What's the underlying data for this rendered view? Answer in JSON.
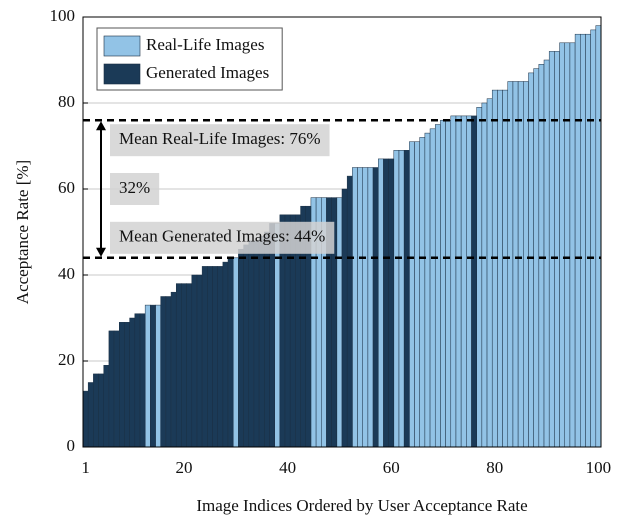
{
  "chart_data": {
    "type": "bar",
    "xlabel": "Image Indices Ordered by User Acceptance Rate",
    "ylabel": "Acceptance Rate [%]",
    "x": [
      1,
      2,
      3,
      4,
      5,
      6,
      7,
      8,
      9,
      10,
      11,
      12,
      13,
      14,
      15,
      16,
      17,
      18,
      19,
      20,
      21,
      22,
      23,
      24,
      25,
      26,
      27,
      28,
      29,
      30,
      31,
      32,
      33,
      34,
      35,
      36,
      37,
      38,
      39,
      40,
      41,
      42,
      43,
      44,
      45,
      46,
      47,
      48,
      49,
      50,
      51,
      52,
      53,
      54,
      55,
      56,
      57,
      58,
      59,
      60,
      61,
      62,
      63,
      64,
      65,
      66,
      67,
      68,
      69,
      70,
      71,
      72,
      73,
      74,
      75,
      76,
      77,
      78,
      79,
      80,
      81,
      82,
      83,
      84,
      85,
      86,
      87,
      88,
      89,
      90,
      91,
      92,
      93,
      94,
      95,
      96,
      97,
      98,
      99,
      100
    ],
    "series": [
      {
        "name": "Real-Life Images",
        "color": "#92c3e6",
        "values": [
          null,
          null,
          null,
          null,
          null,
          null,
          null,
          null,
          null,
          null,
          null,
          null,
          33,
          null,
          33,
          null,
          null,
          null,
          null,
          null,
          null,
          null,
          null,
          null,
          null,
          null,
          null,
          null,
          null,
          44,
          null,
          null,
          null,
          null,
          null,
          null,
          null,
          52,
          null,
          null,
          null,
          null,
          null,
          null,
          58,
          58,
          58,
          null,
          null,
          58,
          null,
          null,
          65,
          65,
          65,
          65,
          null,
          67,
          null,
          null,
          69,
          69,
          null,
          71,
          71,
          72,
          73,
          74,
          75,
          76,
          76,
          77,
          77,
          77,
          77,
          null,
          79,
          80,
          81,
          83,
          83,
          83,
          85,
          85,
          85,
          85,
          87,
          88,
          89,
          90,
          92,
          92,
          94,
          94,
          94,
          96,
          96,
          96,
          97,
          98
        ]
      },
      {
        "name": "Generated Images",
        "color": "#1b3a57",
        "values": [
          13,
          15,
          17,
          17,
          19,
          27,
          27,
          29,
          29,
          30,
          31,
          31,
          null,
          33,
          null,
          35,
          35,
          36,
          38,
          38,
          38,
          40,
          40,
          42,
          42,
          42,
          42,
          43,
          44,
          null,
          46,
          47,
          48,
          48,
          49,
          50,
          52,
          null,
          54,
          54,
          54,
          54,
          56,
          56,
          null,
          null,
          null,
          58,
          58,
          null,
          60,
          63,
          null,
          null,
          null,
          null,
          65,
          null,
          67,
          67,
          null,
          null,
          69,
          null,
          null,
          null,
          null,
          null,
          null,
          null,
          null,
          null,
          null,
          null,
          null,
          77,
          null,
          null,
          null,
          null,
          null,
          null,
          null,
          null,
          null,
          null,
          null,
          null,
          null,
          null,
          null,
          null,
          null,
          null,
          null,
          null,
          null,
          null,
          null,
          null
        ]
      }
    ],
    "xlim": [
      0.5,
      100.5
    ],
    "xticks": [
      1,
      20,
      40,
      60,
      80,
      100
    ],
    "ylim": [
      0,
      100
    ],
    "yticks": [
      0,
      20,
      40,
      60,
      80,
      100
    ],
    "grid": true,
    "legend": "upper left",
    "annotations": [
      {
        "value": 76,
        "label": "Mean Real-Life Images: 76%"
      },
      {
        "value": 44,
        "label": "Mean Generated Images: 44%"
      }
    ],
    "arrow": {
      "from": 44,
      "to": 76,
      "label": "32%"
    }
  }
}
